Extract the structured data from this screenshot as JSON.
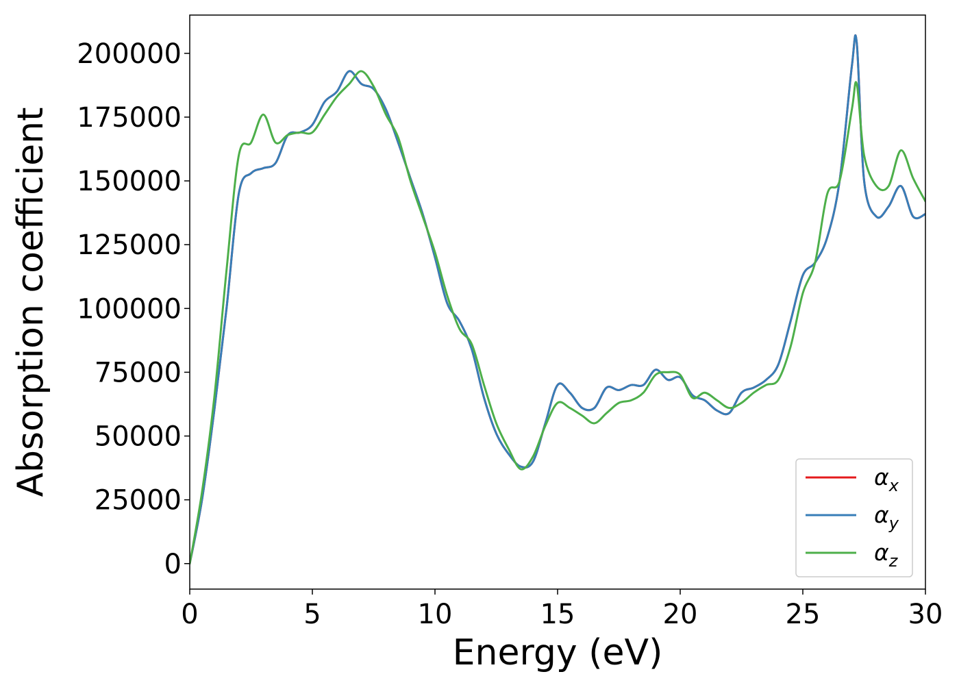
{
  "chart_data": {
    "type": "line",
    "title": "",
    "xlabel": "Energy (eV)",
    "ylabel": "Absorption coefficient",
    "xlim": [
      0,
      30
    ],
    "ylim": [
      -10000,
      215000
    ],
    "xticks": [
      0,
      5,
      10,
      15,
      20,
      25,
      30
    ],
    "yticks": [
      0,
      25000,
      50000,
      75000,
      100000,
      125000,
      150000,
      175000,
      200000
    ],
    "grid": false,
    "legend": "lower-right",
    "x": [
      0,
      0.5,
      1,
      1.5,
      2,
      2.5,
      3,
      3.5,
      4,
      4.5,
      5,
      5.5,
      6,
      6.5,
      7,
      7.5,
      8,
      8.5,
      9,
      9.5,
      10,
      10.5,
      11,
      11.5,
      12,
      12.5,
      13,
      13.5,
      14,
      14.5,
      15,
      15.5,
      16,
      16.5,
      17,
      17.5,
      18,
      18.5,
      19,
      19.5,
      20,
      20.5,
      21,
      21.5,
      22,
      22.5,
      23,
      23.5,
      24,
      24.5,
      25,
      25.5,
      26,
      26.5,
      27,
      27.2,
      27.5,
      28,
      28.5,
      29,
      29.5,
      30
    ],
    "series": [
      {
        "name": "α_x",
        "color": "#e41a1c",
        "values": [
          0,
          25000,
          60000,
          100000,
          145000,
          153000,
          155000,
          157000,
          168000,
          169000,
          172000,
          181000,
          185000,
          193000,
          188000,
          186000,
          178000,
          165000,
          151000,
          137000,
          120000,
          102000,
          95000,
          84000,
          65000,
          51000,
          43000,
          38000,
          40000,
          55000,
          70000,
          67000,
          61000,
          61000,
          69000,
          68000,
          70000,
          70000,
          76000,
          72000,
          73000,
          66000,
          64000,
          60000,
          59000,
          67000,
          69000,
          72000,
          78000,
          95000,
          113000,
          118000,
          128000,
          150000,
          195000,
          204000,
          150000,
          136000,
          140000,
          148000,
          136000,
          137000
        ]
      },
      {
        "name": "α_y",
        "color": "#377eb8",
        "values": [
          0,
          25000,
          60000,
          100000,
          145000,
          153000,
          155000,
          157000,
          168000,
          169000,
          172000,
          181000,
          185000,
          193000,
          188000,
          186000,
          178000,
          165000,
          151000,
          137000,
          120000,
          102000,
          95000,
          84000,
          65000,
          51000,
          43000,
          38000,
          40000,
          55000,
          70000,
          67000,
          61000,
          61000,
          69000,
          68000,
          70000,
          70000,
          76000,
          72000,
          73000,
          66000,
          64000,
          60000,
          59000,
          67000,
          69000,
          72000,
          78000,
          95000,
          113000,
          118000,
          128000,
          150000,
          195000,
          204000,
          150000,
          136000,
          140000,
          148000,
          136000,
          137000
        ]
      },
      {
        "name": "α_z",
        "color": "#4daf4a",
        "values": [
          0,
          28000,
          65000,
          115000,
          160000,
          165000,
          176000,
          165000,
          168000,
          169000,
          169000,
          176000,
          183000,
          188000,
          193000,
          187000,
          176000,
          167000,
          150000,
          136000,
          122000,
          105000,
          92000,
          86000,
          70000,
          55000,
          45000,
          37000,
          42000,
          54000,
          63000,
          61000,
          58000,
          55000,
          59000,
          63000,
          64000,
          67000,
          74000,
          75000,
          74000,
          65000,
          67000,
          64000,
          61000,
          63000,
          67000,
          70000,
          72000,
          85000,
          106000,
          118000,
          145000,
          150000,
          178000,
          188000,
          160000,
          148000,
          148000,
          162000,
          151000,
          142000
        ]
      }
    ]
  }
}
